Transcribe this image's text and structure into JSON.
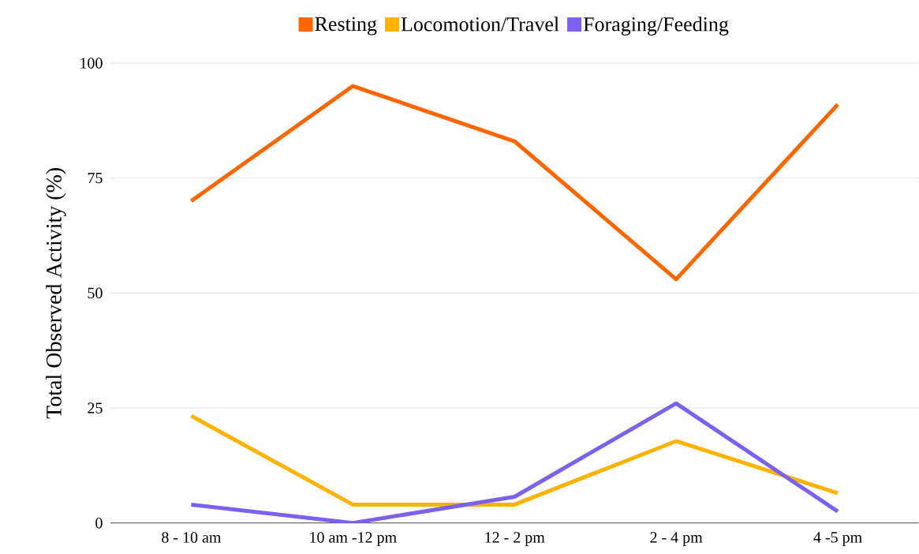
{
  "chart_data": {
    "type": "line",
    "ylabel": "Total Observed Activity (%)",
    "categories": [
      "8 - 10 am",
      "10 am -12 pm",
      "12 - 2 pm",
      "2 - 4 pm",
      "4 -5 pm"
    ],
    "series": [
      {
        "name": "Resting",
        "color": "#ff6600",
        "values": [
          70,
          95,
          83,
          53,
          91
        ]
      },
      {
        "name": "Locomotion/Travel",
        "color": "#ffb300",
        "values": [
          23.3,
          4,
          4,
          17.8,
          6.5
        ]
      },
      {
        "name": "Foraging/Feeding",
        "color": "#7b61ee",
        "values": [
          4,
          0,
          5.7,
          26,
          2.5
        ]
      }
    ],
    "ylim": [
      0,
      100
    ],
    "yticks": [
      0,
      25,
      50,
      75,
      100
    ],
    "grid": "y",
    "legend": "top",
    "marker": "none",
    "line_style": "solid"
  }
}
